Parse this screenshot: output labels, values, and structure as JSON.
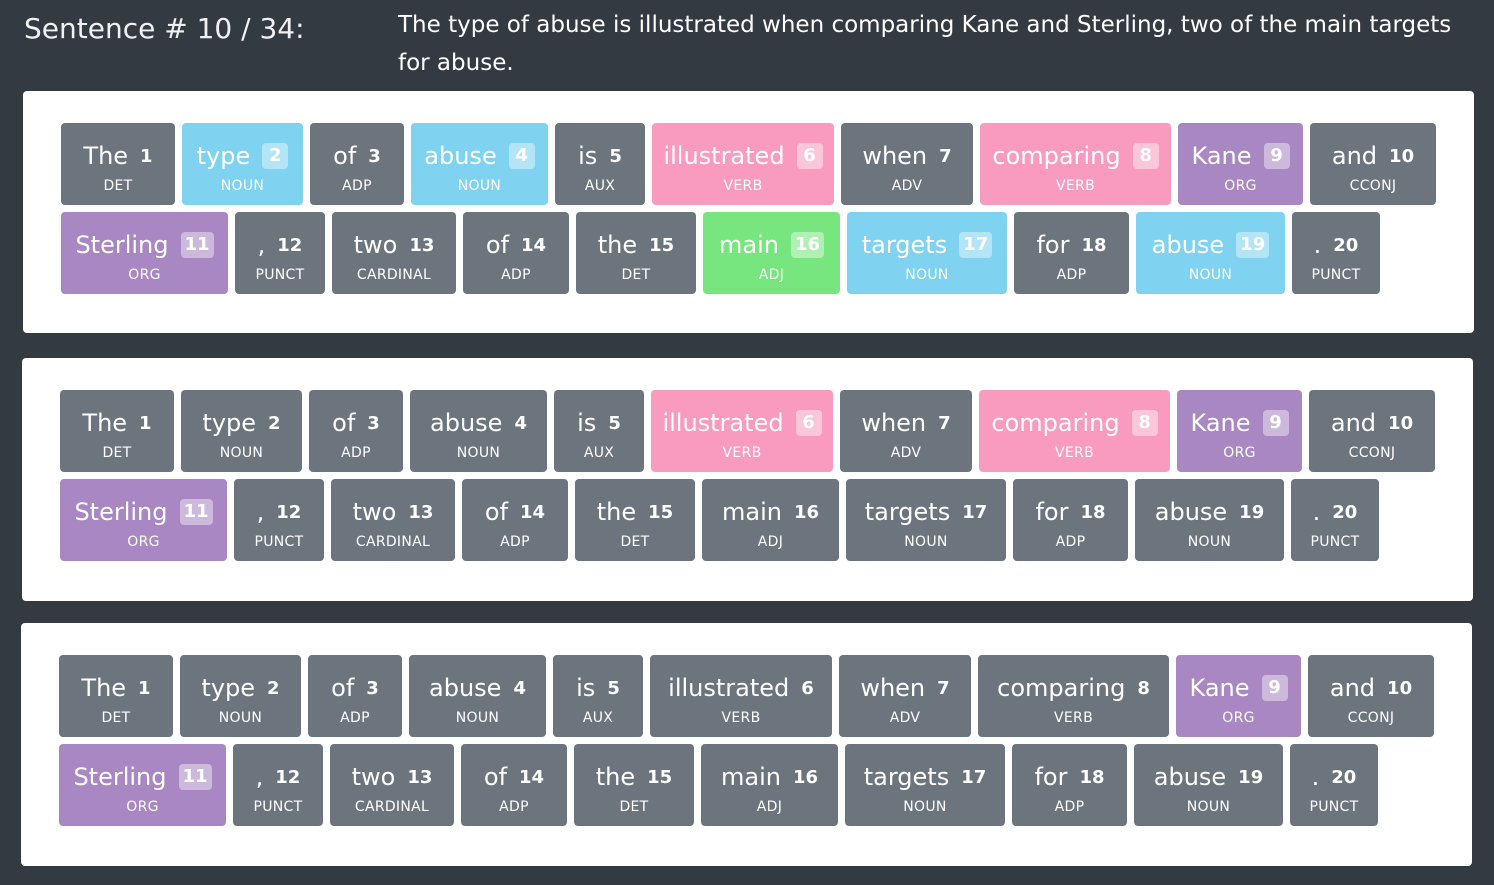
{
  "header": {
    "sentence_label": "Sentence # 10 / 34:",
    "sentence_text": "The type of abuse is illustrated when comparing Kane and Sterling, two of the main targets for abuse."
  },
  "colors": {
    "page_bg": "#343a42",
    "panel_bg": "#ffffff",
    "plain": "#6c757e",
    "noun": "#7fd3f0",
    "verb": "#f99bbf",
    "org": "#a987c2",
    "adj": "#77e67e"
  },
  "panels": [
    {
      "rows": [
        [
          {
            "word": "The",
            "idx": "1",
            "pos": "DET",
            "kind": "plain",
            "w": 114
          },
          {
            "word": "type",
            "idx": "2",
            "pos": "NOUN",
            "kind": "noun",
            "w": 121
          },
          {
            "word": "of",
            "idx": "3",
            "pos": "ADP",
            "kind": "plain",
            "w": 94
          },
          {
            "word": "abuse",
            "idx": "4",
            "pos": "NOUN",
            "kind": "noun",
            "w": 137
          },
          {
            "word": "is",
            "idx": "5",
            "pos": "AUX",
            "kind": "plain",
            "w": 90
          },
          {
            "word": "illustrated",
            "idx": "6",
            "pos": "VERB",
            "kind": "verb",
            "w": 182
          },
          {
            "word": "when",
            "idx": "7",
            "pos": "ADV",
            "kind": "plain",
            "w": 132
          },
          {
            "word": "comparing",
            "idx": "8",
            "pos": "VERB",
            "kind": "verb",
            "w": 191
          },
          {
            "word": "Kane",
            "idx": "9",
            "pos": "ORG",
            "kind": "org",
            "w": 125
          },
          {
            "word": "and",
            "idx": "10",
            "pos": "CCONJ",
            "kind": "plain",
            "w": 126
          }
        ],
        [
          {
            "word": "Sterling",
            "idx": "11",
            "pos": "ORG",
            "kind": "org",
            "w": 167
          },
          {
            "word": ",",
            "idx": "12",
            "pos": "PUNCT",
            "kind": "plain",
            "w": 90
          },
          {
            "word": "two",
            "idx": "13",
            "pos": "CARDINAL",
            "kind": "plain",
            "w": 124
          },
          {
            "word": "of",
            "idx": "14",
            "pos": "ADP",
            "kind": "plain",
            "w": 106
          },
          {
            "word": "the",
            "idx": "15",
            "pos": "DET",
            "kind": "plain",
            "w": 120
          },
          {
            "word": "main",
            "idx": "16",
            "pos": "ADJ",
            "kind": "adj",
            "w": 137
          },
          {
            "word": "targets",
            "idx": "17",
            "pos": "NOUN",
            "kind": "noun",
            "w": 160
          },
          {
            "word": "for",
            "idx": "18",
            "pos": "ADP",
            "kind": "plain",
            "w": 115
          },
          {
            "word": "abuse",
            "idx": "19",
            "pos": "NOUN",
            "kind": "noun",
            "w": 149
          },
          {
            "word": ".",
            "idx": "20",
            "pos": "PUNCT",
            "kind": "plain",
            "w": 88
          }
        ]
      ]
    },
    {
      "rows": [
        [
          {
            "word": "The",
            "idx": "1",
            "pos": "DET",
            "kind": "plain",
            "w": 114
          },
          {
            "word": "type",
            "idx": "2",
            "pos": "NOUN",
            "kind": "plain",
            "w": 121
          },
          {
            "word": "of",
            "idx": "3",
            "pos": "ADP",
            "kind": "plain",
            "w": 94
          },
          {
            "word": "abuse",
            "idx": "4",
            "pos": "NOUN",
            "kind": "plain",
            "w": 137
          },
          {
            "word": "is",
            "idx": "5",
            "pos": "AUX",
            "kind": "plain",
            "w": 90
          },
          {
            "word": "illustrated",
            "idx": "6",
            "pos": "VERB",
            "kind": "verb",
            "w": 182
          },
          {
            "word": "when",
            "idx": "7",
            "pos": "ADV",
            "kind": "plain",
            "w": 132
          },
          {
            "word": "comparing",
            "idx": "8",
            "pos": "VERB",
            "kind": "verb",
            "w": 191
          },
          {
            "word": "Kane",
            "idx": "9",
            "pos": "ORG",
            "kind": "org",
            "w": 125
          },
          {
            "word": "and",
            "idx": "10",
            "pos": "CCONJ",
            "kind": "plain",
            "w": 126
          }
        ],
        [
          {
            "word": "Sterling",
            "idx": "11",
            "pos": "ORG",
            "kind": "org",
            "w": 167
          },
          {
            "word": ",",
            "idx": "12",
            "pos": "PUNCT",
            "kind": "plain",
            "w": 90
          },
          {
            "word": "two",
            "idx": "13",
            "pos": "CARDINAL",
            "kind": "plain",
            "w": 124
          },
          {
            "word": "of",
            "idx": "14",
            "pos": "ADP",
            "kind": "plain",
            "w": 106
          },
          {
            "word": "the",
            "idx": "15",
            "pos": "DET",
            "kind": "plain",
            "w": 120
          },
          {
            "word": "main",
            "idx": "16",
            "pos": "ADJ",
            "kind": "plain",
            "w": 137
          },
          {
            "word": "targets",
            "idx": "17",
            "pos": "NOUN",
            "kind": "plain",
            "w": 160
          },
          {
            "word": "for",
            "idx": "18",
            "pos": "ADP",
            "kind": "plain",
            "w": 115
          },
          {
            "word": "abuse",
            "idx": "19",
            "pos": "NOUN",
            "kind": "plain",
            "w": 149
          },
          {
            "word": ".",
            "idx": "20",
            "pos": "PUNCT",
            "kind": "plain",
            "w": 88
          }
        ]
      ]
    },
    {
      "rows": [
        [
          {
            "word": "The",
            "idx": "1",
            "pos": "DET",
            "kind": "plain",
            "w": 114
          },
          {
            "word": "type",
            "idx": "2",
            "pos": "NOUN",
            "kind": "plain",
            "w": 121
          },
          {
            "word": "of",
            "idx": "3",
            "pos": "ADP",
            "kind": "plain",
            "w": 94
          },
          {
            "word": "abuse",
            "idx": "4",
            "pos": "NOUN",
            "kind": "plain",
            "w": 137
          },
          {
            "word": "is",
            "idx": "5",
            "pos": "AUX",
            "kind": "plain",
            "w": 90
          },
          {
            "word": "illustrated",
            "idx": "6",
            "pos": "VERB",
            "kind": "plain",
            "w": 182
          },
          {
            "word": "when",
            "idx": "7",
            "pos": "ADV",
            "kind": "plain",
            "w": 132
          },
          {
            "word": "comparing",
            "idx": "8",
            "pos": "VERB",
            "kind": "plain",
            "w": 191
          },
          {
            "word": "Kane",
            "idx": "9",
            "pos": "ORG",
            "kind": "org",
            "w": 125
          },
          {
            "word": "and",
            "idx": "10",
            "pos": "CCONJ",
            "kind": "plain",
            "w": 126
          }
        ],
        [
          {
            "word": "Sterling",
            "idx": "11",
            "pos": "ORG",
            "kind": "org",
            "w": 167
          },
          {
            "word": ",",
            "idx": "12",
            "pos": "PUNCT",
            "kind": "plain",
            "w": 90
          },
          {
            "word": "two",
            "idx": "13",
            "pos": "CARDINAL",
            "kind": "plain",
            "w": 124
          },
          {
            "word": "of",
            "idx": "14",
            "pos": "ADP",
            "kind": "plain",
            "w": 106
          },
          {
            "word": "the",
            "idx": "15",
            "pos": "DET",
            "kind": "plain",
            "w": 120
          },
          {
            "word": "main",
            "idx": "16",
            "pos": "ADJ",
            "kind": "plain",
            "w": 137
          },
          {
            "word": "targets",
            "idx": "17",
            "pos": "NOUN",
            "kind": "plain",
            "w": 160
          },
          {
            "word": "for",
            "idx": "18",
            "pos": "ADP",
            "kind": "plain",
            "w": 115
          },
          {
            "word": "abuse",
            "idx": "19",
            "pos": "NOUN",
            "kind": "plain",
            "w": 149
          },
          {
            "word": ".",
            "idx": "20",
            "pos": "PUNCT",
            "kind": "plain",
            "w": 88
          }
        ]
      ]
    }
  ]
}
